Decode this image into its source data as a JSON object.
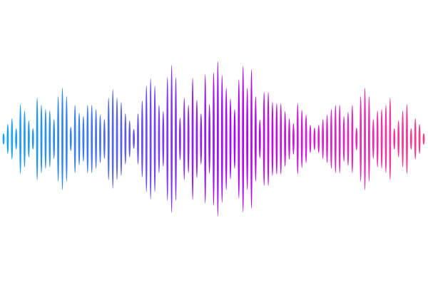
{
  "image": {
    "subject": "sound-wave",
    "background_color": "#ffffff",
    "gradient_colors": [
      "#14a8f2",
      "#3a7af0",
      "#7a3cf6",
      "#ad00f5",
      "#d41ad8",
      "#ff3d86"
    ]
  }
}
